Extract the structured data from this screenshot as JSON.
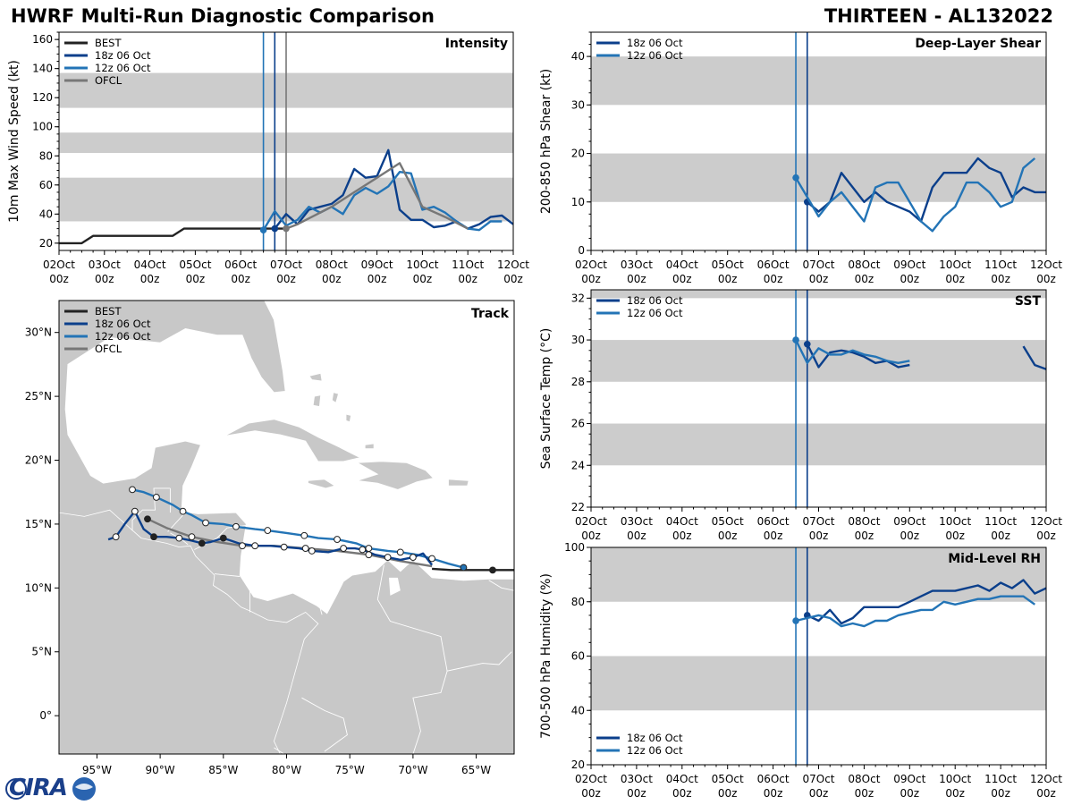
{
  "page": {
    "title": "HWRF Multi-Run Diagnostic Comparison",
    "storm": "THIRTEEN - AL132022",
    "logo_text": "CIRA"
  },
  "colors": {
    "best": "#222222",
    "run18": "#0b3f8b",
    "run12": "#2374b6",
    "ofcl": "#777777",
    "band": "#cccccc",
    "land": "#c8c8c8",
    "border": "#ffffff"
  },
  "time_axis": {
    "ticks": [
      {
        "day": "02Oct",
        "hour": "00z"
      },
      {
        "day": "03Oct",
        "hour": "00z"
      },
      {
        "day": "04Oct",
        "hour": "00z"
      },
      {
        "day": "05Oct",
        "hour": "00z"
      },
      {
        "day": "06Oct",
        "hour": "00z"
      },
      {
        "day": "07Oct",
        "hour": "00z"
      },
      {
        "day": "08Oct",
        "hour": "00z"
      },
      {
        "day": "09Oct",
        "hour": "00z"
      },
      {
        "day": "10Oct",
        "hour": "00z"
      },
      {
        "day": "11Oct",
        "hour": "00z"
      },
      {
        "day": "12Oct",
        "hour": "00z"
      }
    ]
  },
  "chart_data": [
    {
      "id": "intensity",
      "type": "line",
      "title": "Intensity",
      "xlabel": "",
      "ylabel": "10m Max Wind Speed (kt)",
      "xlim": [
        0,
        10
      ],
      "ylim": [
        15,
        165
      ],
      "yticks": [
        20,
        40,
        60,
        80,
        100,
        120,
        140,
        160
      ],
      "bands": [
        [
          35,
          65
        ],
        [
          82,
          96
        ],
        [
          113,
          137
        ]
      ],
      "vlines": [
        {
          "x": 4.5,
          "series": "12z 06 Oct"
        },
        {
          "x": 4.75,
          "series": "18z 06 Oct"
        },
        {
          "x": 5.0,
          "series": "OFCL"
        }
      ],
      "legend": [
        "BEST",
        "18z 06 Oct",
        "12z 06 Oct",
        "OFCL"
      ],
      "series": [
        {
          "name": "BEST",
          "color_key": "best",
          "x": [
            0,
            0.25,
            0.5,
            0.75,
            1.0,
            1.5,
            2.0,
            2.5,
            2.75,
            3.0,
            3.5,
            4.0,
            4.5,
            4.75,
            5.0
          ],
          "y": [
            20,
            20,
            20,
            25,
            25,
            25,
            25,
            25,
            30,
            30,
            30,
            30,
            30,
            30,
            30
          ]
        },
        {
          "name": "18z 06 Oct",
          "color_key": "run18",
          "marker_first": true,
          "x": [
            4.75,
            5.0,
            5.25,
            5.5,
            5.75,
            6.0,
            6.25,
            6.5,
            6.75,
            7.0,
            7.25,
            7.5,
            7.75,
            8.0,
            8.25,
            8.5,
            8.75,
            9.0,
            9.25,
            9.5,
            9.75,
            10.0
          ],
          "y": [
            30,
            40,
            33,
            43,
            45,
            47,
            53,
            71,
            65,
            66,
            84,
            43,
            36,
            36,
            31,
            32,
            35,
            30,
            33,
            38,
            39,
            33
          ]
        },
        {
          "name": "12z 06 Oct",
          "color_key": "run12",
          "marker_first": true,
          "x": [
            4.5,
            4.75,
            5.0,
            5.25,
            5.5,
            5.75,
            6.0,
            6.25,
            6.5,
            6.75,
            7.0,
            7.25,
            7.5,
            7.75,
            8.0,
            8.25,
            8.5,
            8.75,
            9.0,
            9.25,
            9.5,
            9.75
          ],
          "y": [
            29,
            42,
            32,
            36,
            45,
            41,
            45,
            40,
            53,
            58,
            54,
            59,
            69,
            68,
            43,
            45,
            41,
            35,
            30,
            29,
            35,
            35
          ]
        },
        {
          "name": "OFCL",
          "color_key": "ofcl",
          "marker_first": true,
          "x": [
            5.0,
            5.25,
            5.5,
            6.0,
            6.5,
            7.0,
            7.5,
            8.0,
            8.5,
            9.0
          ],
          "y": [
            30,
            33,
            37,
            45,
            55,
            65,
            75,
            45,
            38,
            30
          ]
        }
      ]
    },
    {
      "id": "shear",
      "type": "line",
      "title": "Deep-Layer Shear",
      "xlabel": "",
      "ylabel": "200-850 hPa Shear (kt)",
      "xlim": [
        0,
        10
      ],
      "ylim": [
        0,
        45
      ],
      "yticks": [
        0,
        10,
        20,
        30,
        40
      ],
      "bands": [
        [
          10,
          20
        ],
        [
          30,
          40
        ]
      ],
      "vlines": [
        {
          "x": 4.5,
          "series": "12z 06 Oct"
        },
        {
          "x": 4.75,
          "series": "18z 06 Oct"
        }
      ],
      "legend": [
        "18z 06 Oct",
        "12z 06 Oct"
      ],
      "series": [
        {
          "name": "18z 06 Oct",
          "color_key": "run18",
          "marker_first": true,
          "x": [
            4.75,
            5.0,
            5.25,
            5.5,
            5.75,
            6.0,
            6.25,
            6.5,
            6.75,
            7.0,
            7.25,
            7.5,
            7.75,
            8.0,
            8.25,
            8.5,
            8.75,
            9.0,
            9.25,
            9.5,
            9.75,
            10.0
          ],
          "y": [
            10,
            8,
            10,
            16,
            13,
            10,
            12,
            10,
            9,
            8,
            6,
            13,
            16,
            16,
            16,
            19,
            17,
            16,
            11,
            13,
            12,
            12
          ]
        },
        {
          "name": "12z 06 Oct",
          "color_key": "run12",
          "marker_first": true,
          "x": [
            4.5,
            4.75,
            5.0,
            5.25,
            5.5,
            5.75,
            6.0,
            6.25,
            6.5,
            6.75,
            7.0,
            7.25,
            7.5,
            7.75,
            8.0,
            8.25,
            8.5,
            8.75,
            9.0,
            9.25,
            9.5,
            9.75
          ],
          "y": [
            15,
            11,
            7,
            10,
            12,
            9,
            6,
            13,
            14,
            14,
            10,
            6,
            4,
            7,
            9,
            14,
            14,
            12,
            9,
            10,
            17,
            19
          ]
        }
      ]
    },
    {
      "id": "track",
      "type": "line",
      "title": "Track",
      "xlabel": "",
      "ylabel": "",
      "xlim": [
        -98,
        -62
      ],
      "ylim": [
        -3,
        32.5
      ],
      "xticks": [
        {
          "v": -95,
          "label": "95°W"
        },
        {
          "v": -90,
          "label": "90°W"
        },
        {
          "v": -85,
          "label": "85°W"
        },
        {
          "v": -80,
          "label": "80°W"
        },
        {
          "v": -75,
          "label": "75°W"
        },
        {
          "v": -70,
          "label": "70°W"
        },
        {
          "v": -65,
          "label": "65°W"
        }
      ],
      "yticks": [
        {
          "v": 0,
          "label": "0°"
        },
        {
          "v": 5,
          "label": "5°N"
        },
        {
          "v": 10,
          "label": "10°N"
        },
        {
          "v": 15,
          "label": "15°N"
        },
        {
          "v": 20,
          "label": "20°N"
        },
        {
          "v": 25,
          "label": "25°N"
        },
        {
          "v": 30,
          "label": "30°N"
        }
      ],
      "legend": [
        "BEST",
        "18z 06 Oct",
        "12z 06 Oct",
        "OFCL"
      ],
      "series": [
        {
          "name": "BEST",
          "color_key": "best",
          "lon": [
            -62.0,
            -63.7,
            -65.5,
            -67.0,
            -68.5
          ],
          "lat": [
            11.4,
            11.4,
            11.4,
            11.4,
            11.5
          ],
          "filled": [
            -63.7
          ]
        },
        {
          "name": "18z 06 Oct",
          "color_key": "run18",
          "lon": [
            -68.5,
            -69.2,
            -70.0,
            -71.0,
            -72.0,
            -73.0,
            -74.0,
            -74.6,
            -75.5,
            -76.7,
            -78.0,
            -79.0,
            -80.2,
            -81.3,
            -82.5,
            -83.8,
            -85.0,
            -86.0,
            -86.7,
            -87.5,
            -88.5,
            -89.5,
            -90.5,
            -91.3,
            -92.0,
            -92.8,
            -93.5,
            -94.1
          ],
          "lat": [
            11.8,
            12.7,
            12.4,
            12.2,
            12.4,
            12.6,
            13.0,
            13.1,
            13.1,
            12.8,
            12.9,
            13.1,
            13.2,
            13.3,
            13.3,
            13.5,
            13.9,
            13.6,
            13.5,
            13.7,
            13.9,
            14.0,
            14.0,
            14.6,
            16.0,
            15.0,
            14.0,
            13.8
          ],
          "filled": [
            -69.2,
            -71.0,
            -74.6,
            -76.7,
            -79.0,
            -81.3,
            -85.0,
            -86.7,
            -90.5
          ]
        },
        {
          "name": "12z 06 Oct",
          "color_key": "run12",
          "lon": [
            -66.0,
            -67.2,
            -68.5,
            -69.7,
            -71.0,
            -72.0,
            -73.5,
            -74.5,
            -76.0,
            -77.5,
            -78.6,
            -80.0,
            -81.5,
            -82.5,
            -84.0,
            -85.0,
            -86.4,
            -87.5,
            -88.2,
            -89.0,
            -90.3,
            -91.3,
            -92.2
          ],
          "lat": [
            11.6,
            11.9,
            12.3,
            12.6,
            12.8,
            12.9,
            13.1,
            13.5,
            13.8,
            13.9,
            14.1,
            14.3,
            14.5,
            14.6,
            14.8,
            15.0,
            15.1,
            15.7,
            16.0,
            16.5,
            17.1,
            17.5,
            17.7
          ],
          "filled": [
            -66.0,
            -80.0,
            -85.0,
            -89.0
          ]
        },
        {
          "name": "OFCL",
          "color_key": "ofcl",
          "lon": [
            -68.5,
            -71.0,
            -73.5,
            -76.0,
            -78.5,
            -81.0,
            -83.5,
            -85.5,
            -87.5,
            -89.5,
            -91.0
          ],
          "lat": [
            11.7,
            12.1,
            12.6,
            12.9,
            13.1,
            13.3,
            13.3,
            13.6,
            14.0,
            14.7,
            15.4
          ],
          "filled": [
            -85.5,
            -91.0
          ]
        }
      ]
    },
    {
      "id": "sst",
      "type": "line",
      "title": "SST",
      "xlabel": "",
      "ylabel": "Sea Surface Temp (°C)",
      "xlim": [
        0,
        10
      ],
      "ylim": [
        22,
        32.4
      ],
      "yticks": [
        22,
        24,
        26,
        28,
        30,
        32
      ],
      "bands": [
        [
          24,
          26
        ],
        [
          28,
          30
        ],
        [
          32,
          32.4
        ]
      ],
      "vlines": [
        {
          "x": 4.5,
          "series": "12z 06 Oct"
        },
        {
          "x": 4.75,
          "series": "18z 06 Oct"
        }
      ],
      "legend": [
        "18z 06 Oct",
        "12z 06 Oct"
      ],
      "series": [
        {
          "name": "18z 06 Oct",
          "color_key": "run18",
          "marker_first": true,
          "x": [
            4.75,
            5.0,
            5.25,
            5.5,
            5.75,
            6.0,
            6.25,
            6.5,
            6.75,
            7.0,
            7.25,
            7.5,
            7.75,
            8.0,
            8.25,
            8.5,
            8.75,
            9.0,
            9.25,
            9.5,
            9.75,
            10.0
          ],
          "y": [
            29.8,
            28.7,
            29.4,
            29.5,
            29.4,
            29.2,
            28.9,
            29.0,
            28.7,
            28.8,
            null,
            null,
            null,
            null,
            null,
            null,
            null,
            null,
            null,
            29.7,
            28.8,
            28.6
          ]
        },
        {
          "name": "12z 06 Oct",
          "color_key": "run12",
          "marker_first": true,
          "x": [
            4.5,
            4.75,
            5.0,
            5.25,
            5.5,
            5.75,
            6.0,
            6.25,
            6.5,
            6.75,
            7.0,
            7.25,
            7.5,
            7.75,
            8.0,
            8.25,
            8.5,
            8.75,
            9.0,
            9.25,
            9.5,
            9.75
          ],
          "y": [
            30.0,
            28.9,
            29.6,
            29.3,
            29.3,
            29.5,
            29.3,
            29.2,
            29.0,
            28.9,
            29.0,
            null,
            null,
            null,
            null,
            null,
            null,
            null,
            null,
            null,
            null,
            null
          ]
        }
      ]
    },
    {
      "id": "rh",
      "type": "line",
      "title": "Mid-Level RH",
      "xlabel": "",
      "ylabel": "700-500 hPa Humidity (%)",
      "xlim": [
        0,
        10
      ],
      "ylim": [
        20,
        100
      ],
      "yticks": [
        20,
        40,
        60,
        80,
        100
      ],
      "bands": [
        [
          40,
          60
        ],
        [
          80,
          100
        ]
      ],
      "vlines": [
        {
          "x": 4.5,
          "series": "12z 06 Oct"
        },
        {
          "x": 4.75,
          "series": "18z 06 Oct"
        }
      ],
      "legend": [
        "18z 06 Oct",
        "12z 06 Oct"
      ],
      "series": [
        {
          "name": "18z 06 Oct",
          "color_key": "run18",
          "marker_first": true,
          "x": [
            4.75,
            5.0,
            5.25,
            5.5,
            5.75,
            6.0,
            6.25,
            6.5,
            6.75,
            7.0,
            7.25,
            7.5,
            7.75,
            8.0,
            8.25,
            8.5,
            8.75,
            9.0,
            9.25,
            9.5,
            9.75,
            10.0
          ],
          "y": [
            75,
            73,
            77,
            72,
            74,
            78,
            78,
            78,
            78,
            80,
            82,
            84,
            84,
            84,
            85,
            86,
            84,
            87,
            85,
            88,
            83,
            85
          ]
        },
        {
          "name": "12z 06 Oct",
          "color_key": "run12",
          "marker_first": true,
          "x": [
            4.5,
            4.75,
            5.0,
            5.25,
            5.5,
            5.75,
            6.0,
            6.25,
            6.5,
            6.75,
            7.0,
            7.25,
            7.5,
            7.75,
            8.0,
            8.25,
            8.5,
            8.75,
            9.0,
            9.25,
            9.5,
            9.75
          ],
          "y": [
            73,
            74,
            75,
            74,
            71,
            72,
            71,
            73,
            73,
            75,
            76,
            77,
            77,
            80,
            79,
            80,
            81,
            81,
            82,
            82,
            82,
            79
          ]
        }
      ]
    }
  ]
}
